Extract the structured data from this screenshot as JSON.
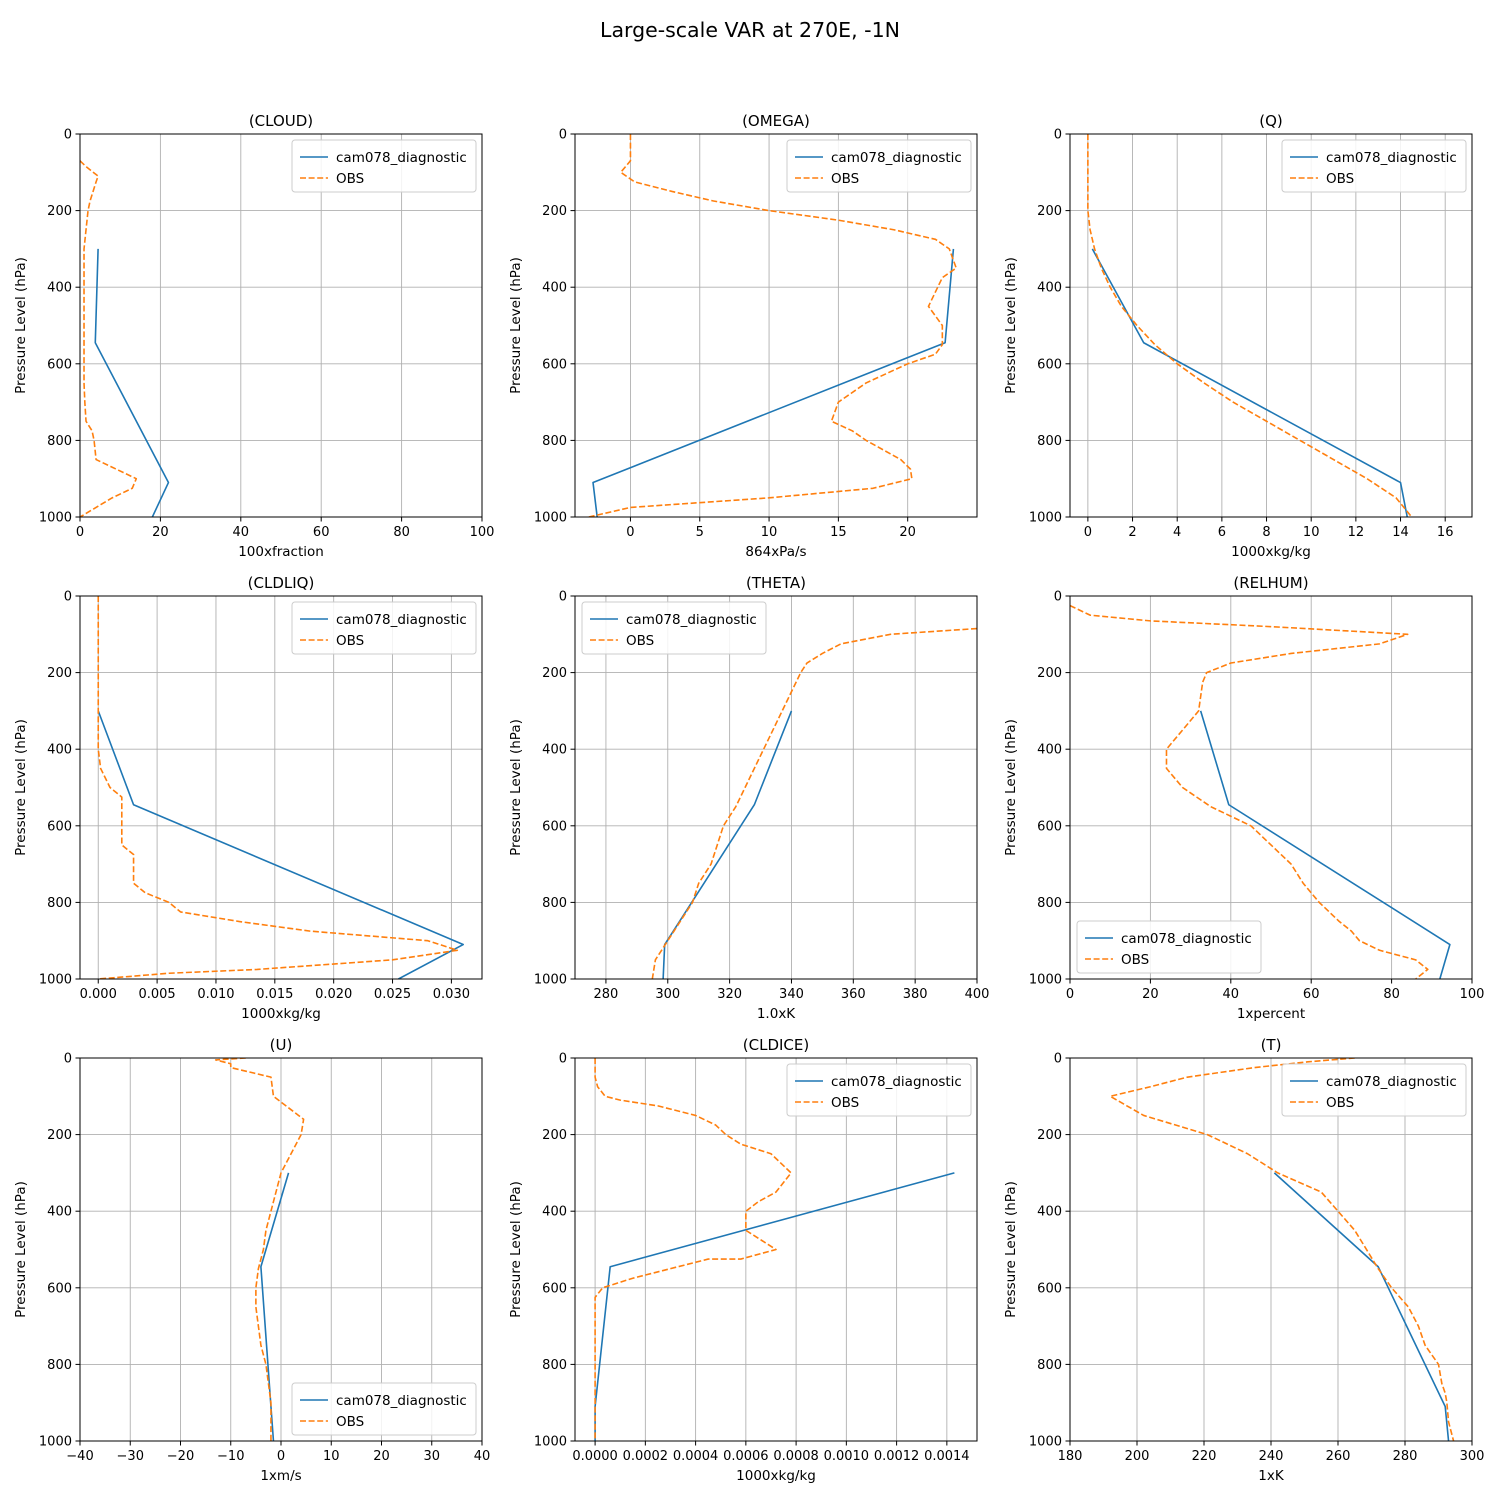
{
  "figure_title": "Large-scale VAR at 270E, -1N",
  "colors": {
    "model": "#1f77b4",
    "obs": "#ff7f0e",
    "grid": "#b0b0b0"
  },
  "chart_data": [
    {
      "type": "line",
      "title": "(CLOUD)",
      "xlabel": "100xfraction",
      "ylabel": "Pressure Level (hPa)",
      "xlim": [
        0,
        100
      ],
      "ylim": [
        1000,
        0
      ],
      "xticks": [
        0,
        20,
        40,
        60,
        80,
        100
      ],
      "xtick_labels": [
        "0",
        "20",
        "40",
        "60",
        "80",
        "100"
      ],
      "yticks": [
        0,
        200,
        400,
        600,
        800,
        1000
      ],
      "ytick_labels": [
        "0",
        "200",
        "400",
        "600",
        "800",
        "1000"
      ],
      "grid": true,
      "legend_position": "upper-right",
      "series": [
        {
          "name": "cam078_diagnostic",
          "style": "solid",
          "x": [
            4.5,
            3.8,
            22,
            18
          ],
          "y": [
            300,
            545,
            910,
            1000
          ]
        },
        {
          "name": "OBS",
          "style": "dashed",
          "x": [
            0,
            1.5,
            4.5,
            4,
            2.5,
            2,
            1.5,
            1,
            1,
            1,
            1,
            1,
            1,
            1,
            1,
            1.2,
            1.5,
            3,
            3.5,
            4,
            9,
            14,
            13,
            8,
            4,
            0
          ],
          "y": [
            70,
            85,
            110,
            125,
            175,
            200,
            250,
            300,
            350,
            400,
            450,
            500,
            550,
            600,
            650,
            700,
            750,
            775,
            800,
            850,
            875,
            900,
            925,
            950,
            975,
            1000
          ]
        }
      ]
    },
    {
      "type": "line",
      "title": "(OMEGA)",
      "xlabel": "864xPa/s",
      "ylabel": "Pressure Level (hPa)",
      "xlim": [
        -4,
        25
      ],
      "ylim": [
        1000,
        0
      ],
      "xticks": [
        0,
        5,
        10,
        15,
        20
      ],
      "xtick_labels": [
        "0",
        "5",
        "10",
        "15",
        "20"
      ],
      "yticks": [
        0,
        200,
        400,
        600,
        800,
        1000
      ],
      "ytick_labels": [
        "0",
        "200",
        "400",
        "600",
        "800",
        "1000"
      ],
      "grid": true,
      "legend_position": "upper-right",
      "series": [
        {
          "name": "cam078_diagnostic",
          "style": "solid",
          "x": [
            23.3,
            22.7,
            -2.7,
            -2.4
          ],
          "y": [
            300,
            545,
            910,
            1000
          ]
        },
        {
          "name": "OBS",
          "style": "dashed",
          "x": [
            0,
            0,
            -0.7,
            0.3,
            3,
            6,
            10,
            15,
            19,
            22,
            23,
            23.5,
            22.5,
            21.5,
            22.5,
            22.5,
            22,
            20,
            17,
            15,
            14.5,
            16,
            17,
            19.5,
            20.2,
            20.3,
            17.5,
            10,
            0,
            -3
          ],
          "y": [
            0,
            70,
            100,
            125,
            150,
            175,
            200,
            225,
            250,
            275,
            300,
            350,
            375,
            450,
            500,
            550,
            575,
            600,
            650,
            700,
            750,
            775,
            800,
            850,
            875,
            900,
            925,
            950,
            975,
            1000
          ]
        }
      ]
    },
    {
      "type": "line",
      "title": "(Q)",
      "xlabel": "1000xkg/kg",
      "ylabel": "Pressure Level (hPa)",
      "xlim": [
        -0.8,
        17.2
      ],
      "ylim": [
        1000,
        0
      ],
      "xticks": [
        0,
        2,
        4,
        6,
        8,
        10,
        12,
        14,
        16
      ],
      "xtick_labels": [
        "0",
        "2",
        "4",
        "6",
        "8",
        "10",
        "12",
        "14",
        "16"
      ],
      "yticks": [
        0,
        200,
        400,
        600,
        800,
        1000
      ],
      "ytick_labels": [
        "0",
        "200",
        "400",
        "600",
        "800",
        "1000"
      ],
      "grid": true,
      "legend_position": "upper-right",
      "series": [
        {
          "name": "cam078_diagnostic",
          "style": "solid",
          "x": [
            0.2,
            2.5,
            14,
            14.3
          ],
          "y": [
            300,
            545,
            910,
            1000
          ]
        },
        {
          "name": "OBS",
          "style": "dashed",
          "x": [
            0,
            0,
            0,
            0.1,
            0.3,
            0.6,
            1.0,
            1.5,
            2.2,
            3.0,
            4.0,
            5.2,
            6.5,
            8,
            9.5,
            11,
            12.5,
            13.8,
            14.5
          ],
          "y": [
            0,
            100,
            200,
            250,
            300,
            350,
            400,
            450,
            500,
            550,
            600,
            650,
            700,
            750,
            800,
            850,
            900,
            950,
            1000
          ]
        }
      ]
    },
    {
      "type": "line",
      "title": "(CLDLIQ)",
      "xlabel": "1000xkg/kg",
      "ylabel": "Pressure Level (hPa)",
      "xlim": [
        -0.00155,
        0.0326
      ],
      "ylim": [
        1000,
        0
      ],
      "xticks": [
        0,
        0.005,
        0.01,
        0.015,
        0.02,
        0.025,
        0.03
      ],
      "xtick_labels": [
        "0.000",
        "0.005",
        "0.010",
        "0.015",
        "0.020",
        "0.025",
        "0.030"
      ],
      "yticks": [
        0,
        200,
        400,
        600,
        800,
        1000
      ],
      "ytick_labels": [
        "0",
        "200",
        "400",
        "600",
        "800",
        "1000"
      ],
      "grid": true,
      "legend_position": "upper-right",
      "series": [
        {
          "name": "cam078_diagnostic",
          "style": "solid",
          "x": [
            0,
            0.003,
            0.031,
            0.0255
          ],
          "y": [
            300,
            545,
            910,
            1000
          ]
        },
        {
          "name": "OBS",
          "style": "dashed",
          "x": [
            0,
            0,
            0,
            0,
            0,
            0,
            0.0002,
            0.001,
            0.002,
            0.002,
            0.002,
            0.002,
            0.003,
            0.003,
            0.003,
            0.004,
            0.006,
            0.007,
            0.012,
            0.018,
            0.028,
            0.0305,
            0.025,
            0.0135,
            0.006,
            0
          ],
          "y": [
            0,
            100,
            200,
            250,
            300,
            400,
            450,
            500,
            525,
            550,
            600,
            650,
            675,
            700,
            750,
            775,
            800,
            825,
            850,
            875,
            900,
            925,
            950,
            975,
            985,
            1000
          ]
        }
      ]
    },
    {
      "type": "line",
      "title": "(THETA)",
      "xlabel": "1.0xK",
      "ylabel": "Pressure Level (hPa)",
      "xlim": [
        270,
        400
      ],
      "ylim": [
        1000,
        0
      ],
      "xticks": [
        280,
        300,
        320,
        340,
        360,
        380,
        400
      ],
      "xtick_labels": [
        "280",
        "300",
        "320",
        "340",
        "360",
        "380",
        "400"
      ],
      "yticks": [
        0,
        200,
        400,
        600,
        800,
        1000
      ],
      "ytick_labels": [
        "0",
        "200",
        "400",
        "600",
        "800",
        "1000"
      ],
      "grid": true,
      "legend_position": "upper-left",
      "series": [
        {
          "name": "cam078_diagnostic",
          "style": "solid",
          "x": [
            340,
            328,
            299,
            298.5
          ],
          "y": [
            300,
            545,
            910,
            1000
          ]
        },
        {
          "name": "OBS",
          "style": "dashed",
          "x": [
            400,
            372,
            356,
            350,
            345,
            343,
            340,
            337,
            334,
            331,
            328,
            325,
            322,
            320,
            318,
            316,
            314,
            312,
            310,
            308,
            306,
            304,
            302,
            300,
            298,
            296,
            295
          ],
          "y": [
            85,
            100,
            125,
            150,
            175,
            200,
            250,
            300,
            350,
            400,
            450,
            500,
            550,
            575,
            600,
            650,
            700,
            725,
            750,
            800,
            825,
            850,
            875,
            900,
            925,
            950,
            1000
          ]
        }
      ]
    },
    {
      "type": "line",
      "title": "(RELHUM)",
      "xlabel": "1xpercent",
      "ylabel": "Pressure Level (hPa)",
      "xlim": [
        0,
        100
      ],
      "ylim": [
        1000,
        0
      ],
      "xticks": [
        0,
        20,
        40,
        60,
        80,
        100
      ],
      "xtick_labels": [
        "0",
        "20",
        "40",
        "60",
        "80",
        "100"
      ],
      "yticks": [
        0,
        200,
        400,
        600,
        800,
        1000
      ],
      "ytick_labels": [
        "0",
        "200",
        "400",
        "600",
        "800",
        "1000"
      ],
      "grid": true,
      "legend_position": "lower-left",
      "series": [
        {
          "name": "cam078_diagnostic",
          "style": "solid",
          "x": [
            32.5,
            39.5,
            94.5,
            92
          ],
          "y": [
            300,
            545,
            910,
            1000
          ]
        },
        {
          "name": "OBS",
          "style": "dashed",
          "x": [
            0,
            5,
            20,
            50,
            84,
            77,
            55,
            40,
            34,
            33,
            32,
            28,
            24,
            24,
            28,
            35,
            40,
            45,
            50,
            55,
            58,
            62,
            67,
            70,
            72,
            77,
            86,
            89,
            86
          ],
          "y": [
            25,
            50,
            65,
            80,
            100,
            125,
            150,
            175,
            200,
            225,
            300,
            350,
            400,
            450,
            500,
            550,
            575,
            600,
            650,
            700,
            750,
            800,
            850,
            875,
            900,
            925,
            950,
            975,
            1000
          ]
        }
      ]
    },
    {
      "type": "line",
      "title": "(U)",
      "xlabel": "1xm/s",
      "ylabel": "Pressure Level (hPa)",
      "xlim": [
        -40,
        40
      ],
      "ylim": [
        1000,
        0
      ],
      "xticks": [
        -40,
        -30,
        -20,
        -10,
        0,
        10,
        20,
        30,
        40
      ],
      "xtick_labels": [
        "−40",
        "−30",
        "−20",
        "−10",
        "0",
        "10",
        "20",
        "30",
        "40"
      ],
      "yticks": [
        0,
        200,
        400,
        600,
        800,
        1000
      ],
      "ytick_labels": [
        "0",
        "200",
        "400",
        "600",
        "800",
        "1000"
      ],
      "grid": true,
      "legend_position": "lower-right",
      "series": [
        {
          "name": "cam078_diagnostic",
          "style": "solid",
          "x": [
            1.5,
            -4,
            -2,
            -1.5
          ],
          "y": [
            300,
            545,
            910,
            1000
          ]
        },
        {
          "name": "OBS",
          "style": "dashed",
          "x": [
            -7,
            -13,
            -10,
            -10,
            -2,
            -1.5,
            1,
            3.5,
            4.5,
            4,
            2,
            0,
            -1,
            -2,
            -3,
            -3.5,
            -4.5,
            -5,
            -5,
            -4.5,
            -4,
            -3,
            -2.5,
            -2,
            -2,
            -2
          ],
          "y": [
            0,
            5,
            15,
            25,
            50,
            100,
            125,
            150,
            160,
            200,
            250,
            300,
            350,
            400,
            450,
            500,
            550,
            600,
            650,
            700,
            750,
            800,
            850,
            900,
            950,
            1000
          ]
        }
      ]
    },
    {
      "type": "line",
      "title": "(CLDICE)",
      "xlabel": "1000xkg/kg",
      "ylabel": "Pressure Level (hPa)",
      "xlim": [
        -8e-05,
        0.00152
      ],
      "ylim": [
        1000,
        0
      ],
      "xticks": [
        0,
        0.0002,
        0.0004,
        0.0006,
        0.0008,
        0.001,
        0.0012,
        0.0014
      ],
      "xtick_labels": [
        "0.0000",
        "0.0002",
        "0.0004",
        "0.0006",
        "0.0008",
        "0.0010",
        "0.0012",
        "0.0014"
      ],
      "yticks": [
        0,
        200,
        400,
        600,
        800,
        1000
      ],
      "ytick_labels": [
        "0",
        "200",
        "400",
        "600",
        "800",
        "1000"
      ],
      "grid": true,
      "legend_position": "upper-right",
      "series": [
        {
          "name": "cam078_diagnostic",
          "style": "solid",
          "x": [
            0.00143,
            6e-05,
            0,
            0
          ],
          "y": [
            300,
            545,
            910,
            1000
          ]
        },
        {
          "name": "OBS",
          "style": "dashed",
          "x": [
            0,
            0,
            0,
            1e-05,
            4e-05,
            0.0001,
            0.00025,
            0.0004,
            0.00048,
            0.00052,
            0.00058,
            0.0007,
            0.00078,
            0.00072,
            0.00065,
            0.0006,
            0.0006,
            0.0006,
            0.00072,
            0.00058,
            0.00045,
            0.0003,
            0.00015,
            3e-05,
            0,
            0,
            0,
            0,
            0
          ],
          "y": [
            0,
            25,
            50,
            75,
            100,
            110,
            125,
            150,
            175,
            200,
            225,
            250,
            300,
            350,
            375,
            400,
            425,
            450,
            500,
            525,
            525,
            550,
            575,
            600,
            625,
            650,
            800,
            900,
            1000
          ]
        }
      ]
    },
    {
      "type": "line",
      "title": "(T)",
      "xlabel": "1xK",
      "ylabel": "Pressure Level (hPa)",
      "xlim": [
        180,
        300
      ],
      "ylim": [
        1000,
        0
      ],
      "xticks": [
        180,
        200,
        220,
        240,
        260,
        280,
        300
      ],
      "xtick_labels": [
        "180",
        "200",
        "220",
        "240",
        "260",
        "280",
        "300"
      ],
      "yticks": [
        0,
        200,
        400,
        600,
        800,
        1000
      ],
      "ytick_labels": [
        "0",
        "200",
        "400",
        "600",
        "800",
        "1000"
      ],
      "grid": true,
      "legend_position": "upper-right",
      "series": [
        {
          "name": "cam078_diagnostic",
          "style": "solid",
          "x": [
            241,
            272,
            292,
            293
          ],
          "y": [
            300,
            545,
            910,
            1000
          ]
        },
        {
          "name": "OBS",
          "style": "dashed",
          "x": [
            265,
            251,
            235,
            215,
            204,
            192,
            202,
            221,
            233,
            242,
            255,
            265,
            272,
            276,
            281,
            284,
            286,
            288,
            290,
            291,
            292,
            292.5,
            293,
            294.5
          ],
          "y": [
            0,
            10,
            25,
            50,
            75,
            100,
            150,
            200,
            250,
            300,
            350,
            450,
            550,
            600,
            650,
            700,
            750,
            775,
            800,
            850,
            875,
            900,
            950,
            1000
          ]
        }
      ]
    }
  ]
}
